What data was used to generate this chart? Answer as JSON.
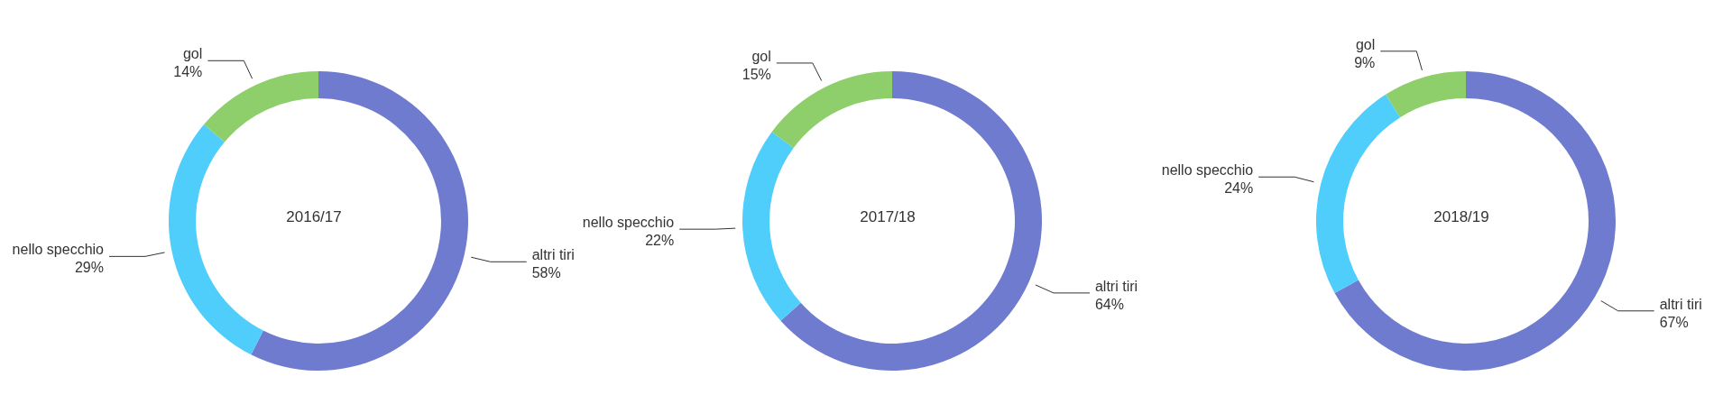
{
  "chart_data": [
    {
      "type": "donut",
      "title": "2016/17",
      "categories": [
        "altri tiri",
        "nello specchio",
        "gol"
      ],
      "values": [
        58,
        29,
        14
      ],
      "value_labels": [
        "58%",
        "29%",
        "14%"
      ],
      "colors": [
        "#6f7bcf",
        "#4fcdfb",
        "#8ecf6b"
      ]
    },
    {
      "type": "donut",
      "title": "2017/18",
      "categories": [
        "altri tiri",
        "nello specchio",
        "gol"
      ],
      "values": [
        64,
        22,
        15
      ],
      "value_labels": [
        "64%",
        "22%",
        "15%"
      ],
      "colors": [
        "#6f7bcf",
        "#4fcdfb",
        "#8ecf6b"
      ]
    },
    {
      "type": "donut",
      "title": "2018/19",
      "categories": [
        "altri tiri",
        "nello specchio",
        "gol"
      ],
      "values": [
        67,
        24,
        9
      ],
      "value_labels": [
        "67%",
        "24%",
        "9%"
      ],
      "colors": [
        "#6f7bcf",
        "#4fcdfb",
        "#8ecf6b"
      ]
    }
  ]
}
